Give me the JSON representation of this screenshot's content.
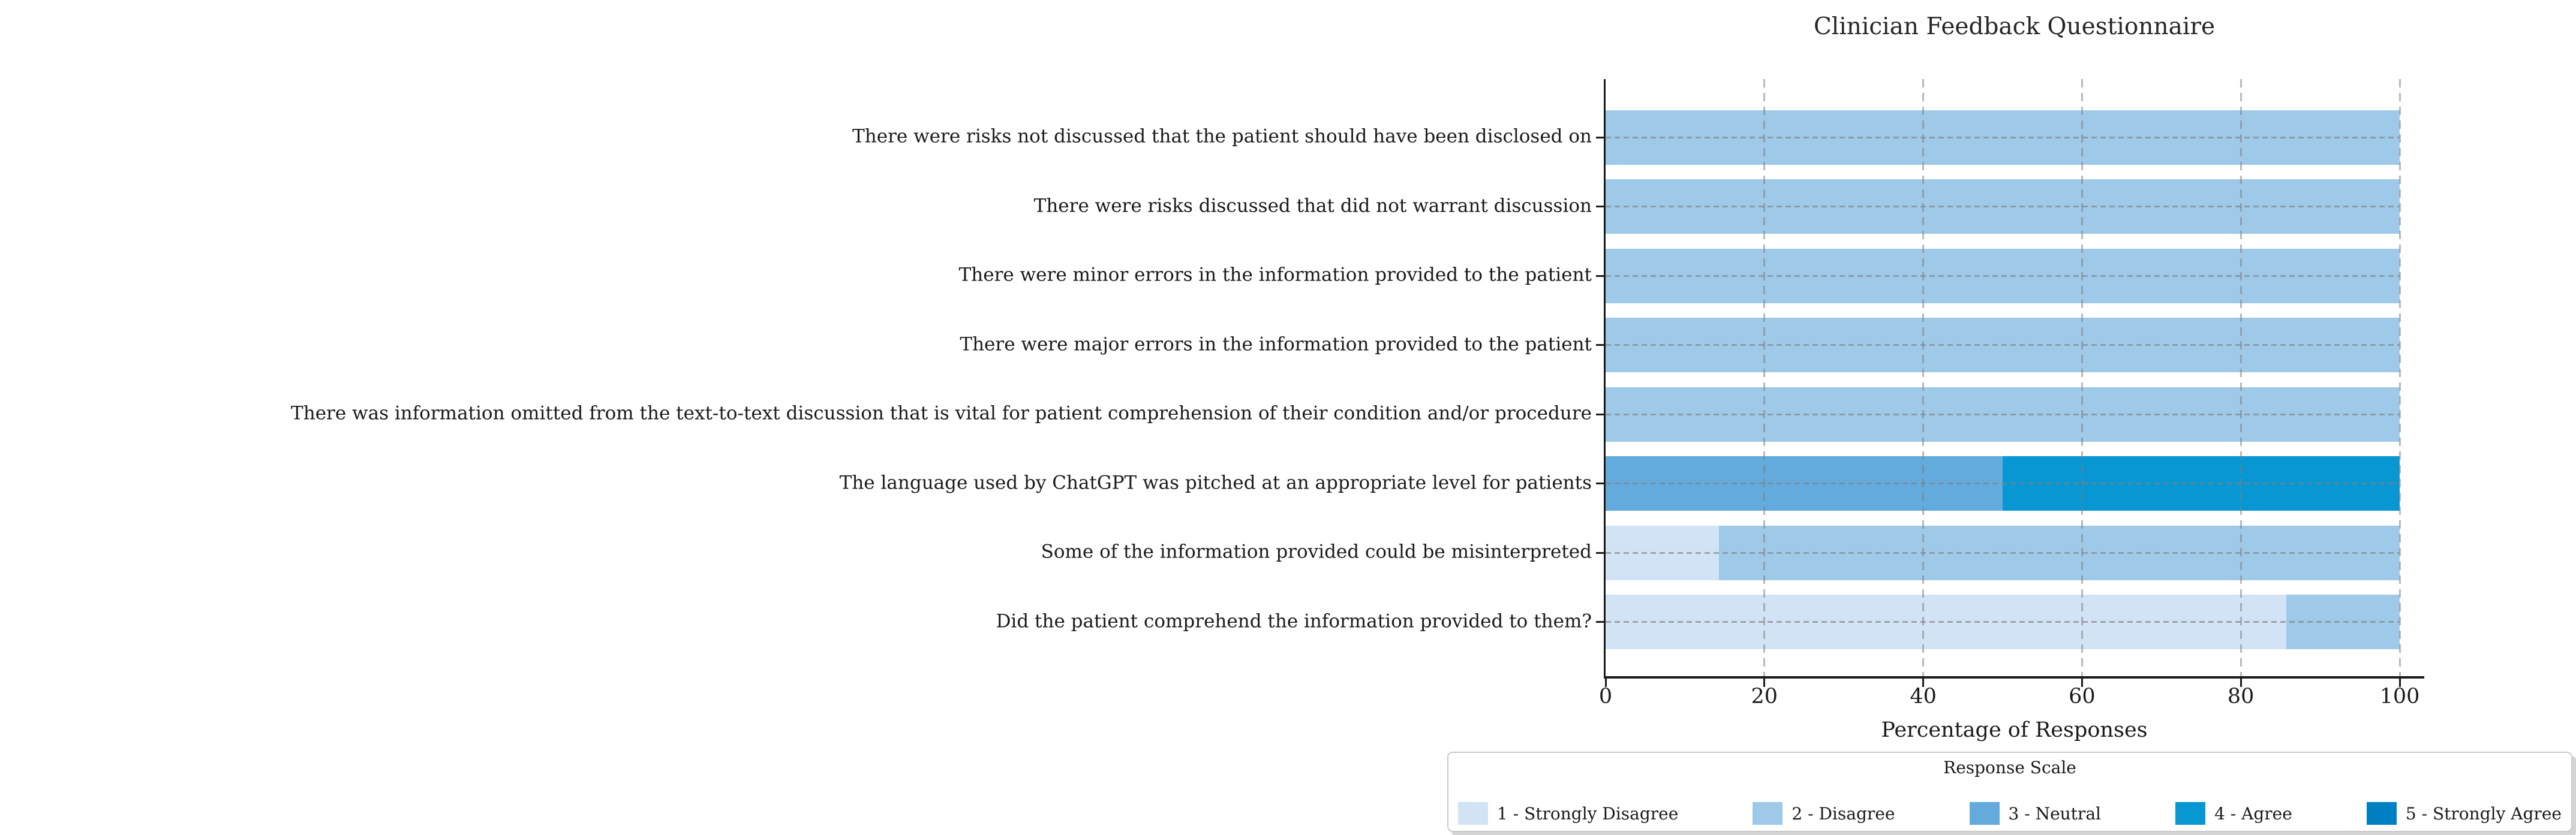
{
  "title": "Clinician Feedback Questionnaire",
  "xlabel": "Percentage of Responses",
  "legend": {
    "title": "Response Scale"
  },
  "chart_data": {
    "type": "bar",
    "orientation": "horizontal",
    "stacked": true,
    "title": "Clinician Feedback Questionnaire",
    "xlabel": "Percentage of Responses",
    "ylabel": "",
    "xlim": [
      0,
      100
    ],
    "xticks": [
      0,
      20,
      40,
      60,
      80,
      100
    ],
    "grid": true,
    "legend_position": "lower right outside",
    "legend_title": "Response Scale",
    "categories": [
      "There were risks not discussed that the patient should have been disclosed on",
      "There were risks discussed that did not warrant discussion",
      "There were minor errors in the information provided to the patient",
      "There were major errors in the information provided to the patient",
      "There was information omitted from the text-to-text discussion that is vital for patient comprehension of their condition and/or procedure",
      "The language used by ChatGPT was pitched at an appropriate level for patients",
      "Some of the information provided could be misinterpreted",
      "Did the patient comprehend the information provided to them?"
    ],
    "series": [
      {
        "name": "1 - Strongly Disagree",
        "color": "#d2e3f6",
        "values": [
          0,
          0,
          0,
          0,
          0,
          0,
          14.3,
          85.7
        ]
      },
      {
        "name": "2 - Disagree",
        "color": "#9fc9e9",
        "values": [
          100,
          100,
          100,
          100,
          100,
          0,
          85.7,
          14.3
        ]
      },
      {
        "name": "3 - Neutral",
        "color": "#62abdc",
        "values": [
          0,
          0,
          0,
          0,
          0,
          50,
          0,
          0
        ]
      },
      {
        "name": "4 - Agree",
        "color": "#0897d2",
        "values": [
          0,
          0,
          0,
          0,
          0,
          50,
          0,
          0
        ]
      },
      {
        "name": "5 - Strongly Agree",
        "color": "#0080c3",
        "values": [
          0,
          0,
          0,
          0,
          0,
          0,
          0,
          0
        ]
      }
    ]
  }
}
